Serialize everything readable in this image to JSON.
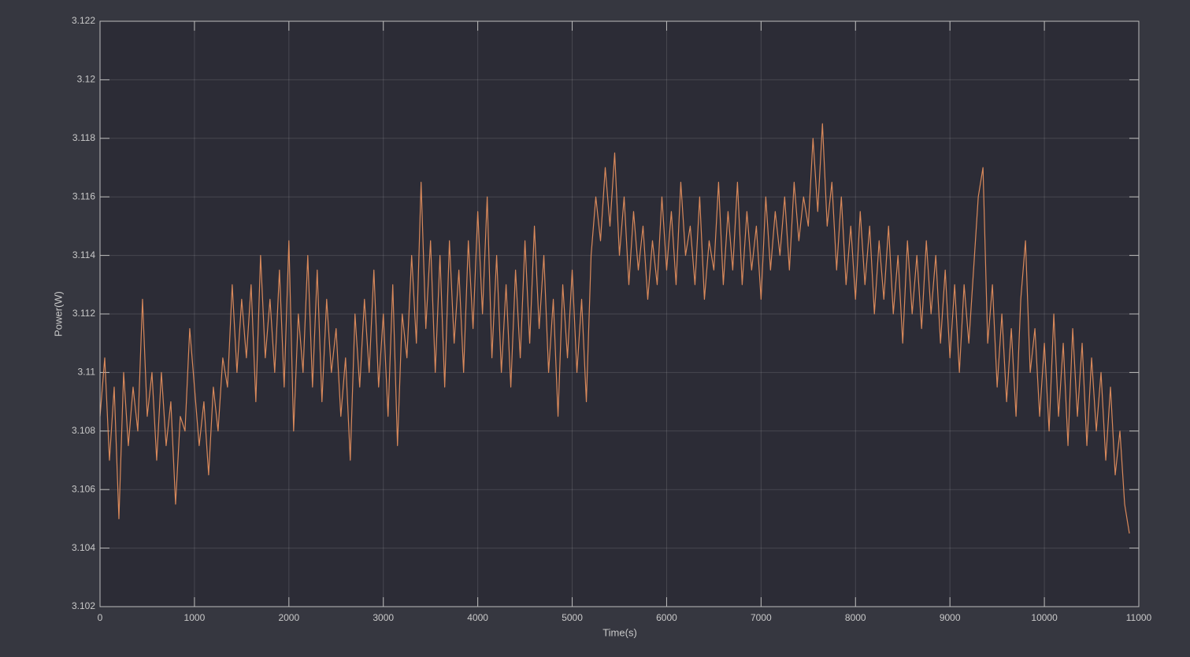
{
  "chart_data": {
    "type": "line",
    "xlabel": "Time(s)",
    "ylabel": "Power(W)",
    "color": "#d9895b",
    "grid": true,
    "xlim": [
      0,
      11000
    ],
    "ylim": [
      3.102,
      3.122
    ],
    "xticks": [
      0,
      1000,
      2000,
      3000,
      4000,
      5000,
      6000,
      7000,
      8000,
      9000,
      10000,
      11000
    ],
    "yticks": [
      3.102,
      3.104,
      3.106,
      3.108,
      3.11,
      3.112,
      3.114,
      3.116,
      3.118,
      3.12,
      3.122
    ],
    "x": [
      0,
      50,
      100,
      150,
      200,
      250,
      300,
      350,
      400,
      450,
      500,
      550,
      600,
      650,
      700,
      750,
      800,
      850,
      900,
      950,
      1000,
      1050,
      1100,
      1150,
      1200,
      1250,
      1300,
      1350,
      1400,
      1450,
      1500,
      1550,
      1600,
      1650,
      1700,
      1750,
      1800,
      1850,
      1900,
      1950,
      2000,
      2050,
      2100,
      2150,
      2200,
      2250,
      2300,
      2350,
      2400,
      2450,
      2500,
      2550,
      2600,
      2650,
      2700,
      2750,
      2800,
      2850,
      2900,
      2950,
      3000,
      3050,
      3100,
      3150,
      3200,
      3250,
      3300,
      3350,
      3400,
      3450,
      3500,
      3550,
      3600,
      3650,
      3700,
      3750,
      3800,
      3850,
      3900,
      3950,
      4000,
      4050,
      4100,
      4150,
      4200,
      4250,
      4300,
      4350,
      4400,
      4450,
      4500,
      4550,
      4600,
      4650,
      4700,
      4750,
      4800,
      4850,
      4900,
      4950,
      5000,
      5050,
      5100,
      5150,
      5200,
      5250,
      5300,
      5350,
      5400,
      5450,
      5500,
      5550,
      5600,
      5650,
      5700,
      5750,
      5800,
      5850,
      5900,
      5950,
      6000,
      6050,
      6100,
      6150,
      6200,
      6250,
      6300,
      6350,
      6400,
      6450,
      6500,
      6550,
      6600,
      6650,
      6700,
      6750,
      6800,
      6850,
      6900,
      6950,
      7000,
      7050,
      7100,
      7150,
      7200,
      7250,
      7300,
      7350,
      7400,
      7450,
      7500,
      7550,
      7600,
      7650,
      7700,
      7750,
      7800,
      7850,
      7900,
      7950,
      8000,
      8050,
      8100,
      8150,
      8200,
      8250,
      8300,
      8350,
      8400,
      8450,
      8500,
      8550,
      8600,
      8650,
      8700,
      8750,
      8800,
      8850,
      8900,
      8950,
      9000,
      9050,
      9100,
      9150,
      9200,
      9250,
      9300,
      9350,
      9400,
      9450,
      9500,
      9550,
      9600,
      9650,
      9700,
      9750,
      9800,
      9850,
      9900,
      9950,
      10000,
      10050,
      10100,
      10150,
      10200,
      10250,
      10300,
      10350,
      10400,
      10450,
      10500,
      10550,
      10600,
      10650,
      10700,
      10750,
      10800,
      10850,
      10900
    ],
    "values": [
      3.1085,
      3.1105,
      3.107,
      3.1095,
      3.105,
      3.11,
      3.1075,
      3.1095,
      3.108,
      3.1125,
      3.1085,
      3.11,
      3.107,
      3.11,
      3.1075,
      3.109,
      3.1055,
      3.1085,
      3.108,
      3.1115,
      3.1095,
      3.1075,
      3.109,
      3.1065,
      3.1095,
      3.108,
      3.1105,
      3.1095,
      3.113,
      3.11,
      3.1125,
      3.1105,
      3.113,
      3.109,
      3.114,
      3.1105,
      3.1125,
      3.11,
      3.1135,
      3.1095,
      3.1145,
      3.108,
      3.112,
      3.11,
      3.114,
      3.1095,
      3.1135,
      3.109,
      3.1125,
      3.11,
      3.1115,
      3.1085,
      3.1105,
      3.107,
      3.112,
      3.1095,
      3.1125,
      3.11,
      3.1135,
      3.1095,
      3.112,
      3.1085,
      3.113,
      3.1075,
      3.112,
      3.1105,
      3.114,
      3.111,
      3.1165,
      3.1115,
      3.1145,
      3.11,
      3.114,
      3.1095,
      3.1145,
      3.111,
      3.1135,
      3.11,
      3.1145,
      3.1115,
      3.1155,
      3.112,
      3.116,
      3.1105,
      3.114,
      3.11,
      3.113,
      3.1095,
      3.1135,
      3.1105,
      3.1145,
      3.111,
      3.115,
      3.1115,
      3.114,
      3.11,
      3.1125,
      3.1085,
      3.113,
      3.1105,
      3.1135,
      3.11,
      3.1125,
      3.109,
      3.114,
      3.116,
      3.1145,
      3.117,
      3.115,
      3.1175,
      3.114,
      3.116,
      3.113,
      3.1155,
      3.1135,
      3.115,
      3.1125,
      3.1145,
      3.113,
      3.116,
      3.1135,
      3.1155,
      3.113,
      3.1165,
      3.114,
      3.115,
      3.113,
      3.116,
      3.1125,
      3.1145,
      3.1135,
      3.1165,
      3.113,
      3.1155,
      3.1135,
      3.1165,
      3.113,
      3.1155,
      3.1135,
      3.115,
      3.1125,
      3.116,
      3.1135,
      3.1155,
      3.114,
      3.116,
      3.1135,
      3.1165,
      3.1145,
      3.116,
      3.115,
      3.118,
      3.1155,
      3.1185,
      3.115,
      3.1165,
      3.1135,
      3.116,
      3.113,
      3.115,
      3.1125,
      3.1155,
      3.113,
      3.115,
      3.112,
      3.1145,
      3.1125,
      3.115,
      3.112,
      3.114,
      3.111,
      3.1145,
      3.112,
      3.114,
      3.1115,
      3.1145,
      3.112,
      3.114,
      3.111,
      3.1135,
      3.1105,
      3.113,
      3.11,
      3.113,
      3.111,
      3.1135,
      3.116,
      3.117,
      3.111,
      3.113,
      3.1095,
      3.112,
      3.109,
      3.1115,
      3.1085,
      3.1125,
      3.1145,
      3.11,
      3.1115,
      3.1085,
      3.111,
      3.108,
      3.112,
      3.1085,
      3.111,
      3.1075,
      3.1115,
      3.1085,
      3.111,
      3.1075,
      3.1105,
      3.108,
      3.11,
      3.107,
      3.1095,
      3.1065,
      3.108,
      3.1055,
      3.1045
    ]
  }
}
